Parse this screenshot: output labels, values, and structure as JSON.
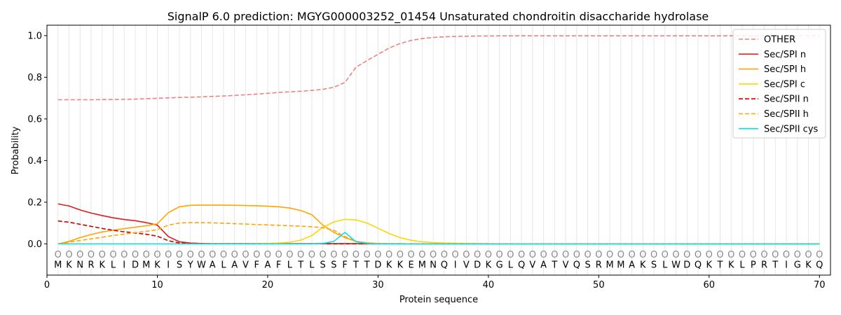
{
  "chart_data": {
    "type": "line",
    "title": "SignalP 6.0 prediction: MGYG000003252_01454 Unsaturated chondroitin disaccharide hydrolase",
    "xlabel": "Protein sequence",
    "ylabel": "Probability",
    "xlim": [
      0,
      71
    ],
    "ylim": [
      -0.15,
      1.05
    ],
    "x_ticks": [
      "0",
      "10",
      "20",
      "30",
      "40",
      "50",
      "60",
      "70"
    ],
    "y_ticks": [
      "0.0",
      "0.2",
      "0.4",
      "0.6",
      "0.8",
      "1.0"
    ],
    "grid": "vertical lines at each residue",
    "legend_position": "top-right",
    "sequence": [
      "M",
      "K",
      "N",
      "R",
      "K",
      "L",
      "I",
      "D",
      "M",
      "K",
      "I",
      "S",
      "Y",
      "W",
      "A",
      "L",
      "A",
      "V",
      "F",
      "A",
      "F",
      "L",
      "T",
      "L",
      "S",
      "S",
      "F",
      "T",
      "T",
      "D",
      "K",
      "K",
      "E",
      "M",
      "N",
      "Q",
      "I",
      "V",
      "D",
      "K",
      "G",
      "L",
      "Q",
      "V",
      "A",
      "T",
      "V",
      "Q",
      "S",
      "R",
      "M",
      "M",
      "A",
      "K",
      "S",
      "L",
      "W",
      "D",
      "Q",
      "K",
      "T",
      "K",
      "L",
      "P",
      "R",
      "T",
      "I",
      "G",
      "K",
      "Q"
    ],
    "residue_label": "O",
    "series": [
      {
        "name": "OTHER",
        "color": "#f08080",
        "dash": "dashed",
        "values": [
          0.692,
          0.692,
          0.692,
          0.692,
          0.693,
          0.693,
          0.694,
          0.695,
          0.697,
          0.699,
          0.701,
          0.703,
          0.704,
          0.706,
          0.708,
          0.71,
          0.713,
          0.716,
          0.719,
          0.723,
          0.727,
          0.73,
          0.733,
          0.737,
          0.742,
          0.752,
          0.775,
          0.848,
          0.88,
          0.91,
          0.94,
          0.962,
          0.977,
          0.986,
          0.991,
          0.994,
          0.996,
          0.997,
          0.998,
          0.998,
          0.999,
          0.999,
          0.999,
          0.999,
          0.999,
          0.999,
          0.999,
          0.999,
          0.999,
          0.999,
          0.999,
          0.999,
          0.999,
          0.999,
          0.999,
          0.999,
          0.999,
          0.999,
          0.999,
          0.999,
          0.999,
          0.999,
          0.999,
          0.999,
          0.999,
          0.999,
          0.999,
          0.999,
          0.999,
          0.999
        ]
      },
      {
        "name": "Sec/SPI n",
        "color": "#e31a1c",
        "dash": "solid",
        "values": [
          0.192,
          0.182,
          0.163,
          0.148,
          0.136,
          0.125,
          0.117,
          0.111,
          0.102,
          0.09,
          0.035,
          0.01,
          0.004,
          0.002,
          0.001,
          0.001,
          0.001,
          0.001,
          0.001,
          0.001,
          0.001,
          0.001,
          0.001,
          0.001,
          0.001,
          0.001,
          0.001,
          0.001,
          0,
          0,
          0,
          0,
          0,
          0,
          0,
          0,
          0,
          0,
          0,
          0,
          0,
          0,
          0,
          0,
          0,
          0,
          0,
          0,
          0,
          0,
          0,
          0,
          0,
          0,
          0,
          0,
          0,
          0,
          0,
          0,
          0,
          0,
          0,
          0,
          0,
          0,
          0,
          0,
          0,
          0
        ]
      },
      {
        "name": "Sec/SPI h",
        "color": "#ffa500",
        "dash": "solid",
        "values": [
          0.0,
          0.012,
          0.03,
          0.045,
          0.057,
          0.066,
          0.073,
          0.08,
          0.087,
          0.096,
          0.15,
          0.178,
          0.185,
          0.186,
          0.186,
          0.186,
          0.185,
          0.184,
          0.183,
          0.181,
          0.178,
          0.172,
          0.16,
          0.14,
          0.09,
          0.055,
          0.03,
          0.012,
          0.005,
          0.002,
          0.001,
          0.001,
          0,
          0,
          0,
          0,
          0,
          0,
          0,
          0,
          0,
          0,
          0,
          0,
          0,
          0,
          0,
          0,
          0,
          0,
          0,
          0,
          0,
          0,
          0,
          0,
          0,
          0,
          0,
          0,
          0,
          0,
          0,
          0,
          0,
          0,
          0,
          0,
          0,
          0
        ]
      },
      {
        "name": "Sec/SPI c",
        "color": "#ffd700",
        "dash": "solid",
        "values": [
          0,
          0,
          0,
          0,
          0,
          0,
          0,
          0,
          0,
          0,
          0,
          0,
          0,
          0,
          0,
          0,
          0,
          0,
          0.001,
          0.002,
          0.004,
          0.008,
          0.018,
          0.04,
          0.08,
          0.105,
          0.118,
          0.115,
          0.1,
          0.075,
          0.05,
          0.03,
          0.017,
          0.01,
          0.006,
          0.004,
          0.003,
          0.002,
          0.001,
          0.001,
          0,
          0,
          0,
          0,
          0,
          0,
          0,
          0,
          0,
          0,
          0,
          0,
          0,
          0,
          0,
          0,
          0,
          0,
          0,
          0,
          0,
          0,
          0,
          0,
          0,
          0,
          0,
          0,
          0,
          0
        ]
      },
      {
        "name": "Sec/SPII n",
        "color": "#cc0000",
        "dash": "dashed",
        "values": [
          0.11,
          0.104,
          0.094,
          0.084,
          0.074,
          0.065,
          0.058,
          0.052,
          0.046,
          0.037,
          0.015,
          0.004,
          0.001,
          0,
          0,
          0,
          0,
          0,
          0,
          0,
          0,
          0,
          0,
          0,
          0,
          0,
          0,
          0,
          0,
          0,
          0,
          0,
          0,
          0,
          0,
          0,
          0,
          0,
          0,
          0,
          0,
          0,
          0,
          0,
          0,
          0,
          0,
          0,
          0,
          0,
          0,
          0,
          0,
          0,
          0,
          0,
          0,
          0,
          0,
          0,
          0,
          0,
          0,
          0,
          0,
          0,
          0,
          0,
          0,
          0
        ]
      },
      {
        "name": "Sec/SPII h",
        "color": "#ffa500",
        "dash": "dashed",
        "values": [
          0.0,
          0.008,
          0.016,
          0.024,
          0.032,
          0.04,
          0.047,
          0.054,
          0.06,
          0.068,
          0.09,
          0.1,
          0.102,
          0.102,
          0.101,
          0.099,
          0.097,
          0.095,
          0.093,
          0.091,
          0.089,
          0.087,
          0.085,
          0.082,
          0.078,
          0.065,
          0.035,
          0.012,
          0.004,
          0.001,
          0,
          0,
          0,
          0,
          0,
          0,
          0,
          0,
          0,
          0,
          0,
          0,
          0,
          0,
          0,
          0,
          0,
          0,
          0,
          0,
          0,
          0,
          0,
          0,
          0,
          0,
          0,
          0,
          0,
          0,
          0,
          0,
          0,
          0,
          0,
          0,
          0,
          0,
          0,
          0
        ]
      },
      {
        "name": "Sec/SPII cys",
        "color": "#00e5ee",
        "dash": "solid",
        "values": [
          0,
          0,
          0,
          0,
          0,
          0,
          0,
          0,
          0,
          0,
          0,
          0,
          0,
          0,
          0,
          0,
          0,
          0,
          0,
          0,
          0,
          0,
          0,
          0,
          0.002,
          0.012,
          0.055,
          0.01,
          0.002,
          0,
          0,
          0,
          0,
          0,
          0,
          0,
          0,
          0,
          0,
          0,
          0,
          0,
          0,
          0,
          0,
          0,
          0,
          0,
          0,
          0,
          0,
          0,
          0,
          0,
          0,
          0,
          0,
          0,
          0,
          0,
          0,
          0,
          0,
          0,
          0,
          0,
          0,
          0,
          0,
          0
        ]
      }
    ]
  }
}
